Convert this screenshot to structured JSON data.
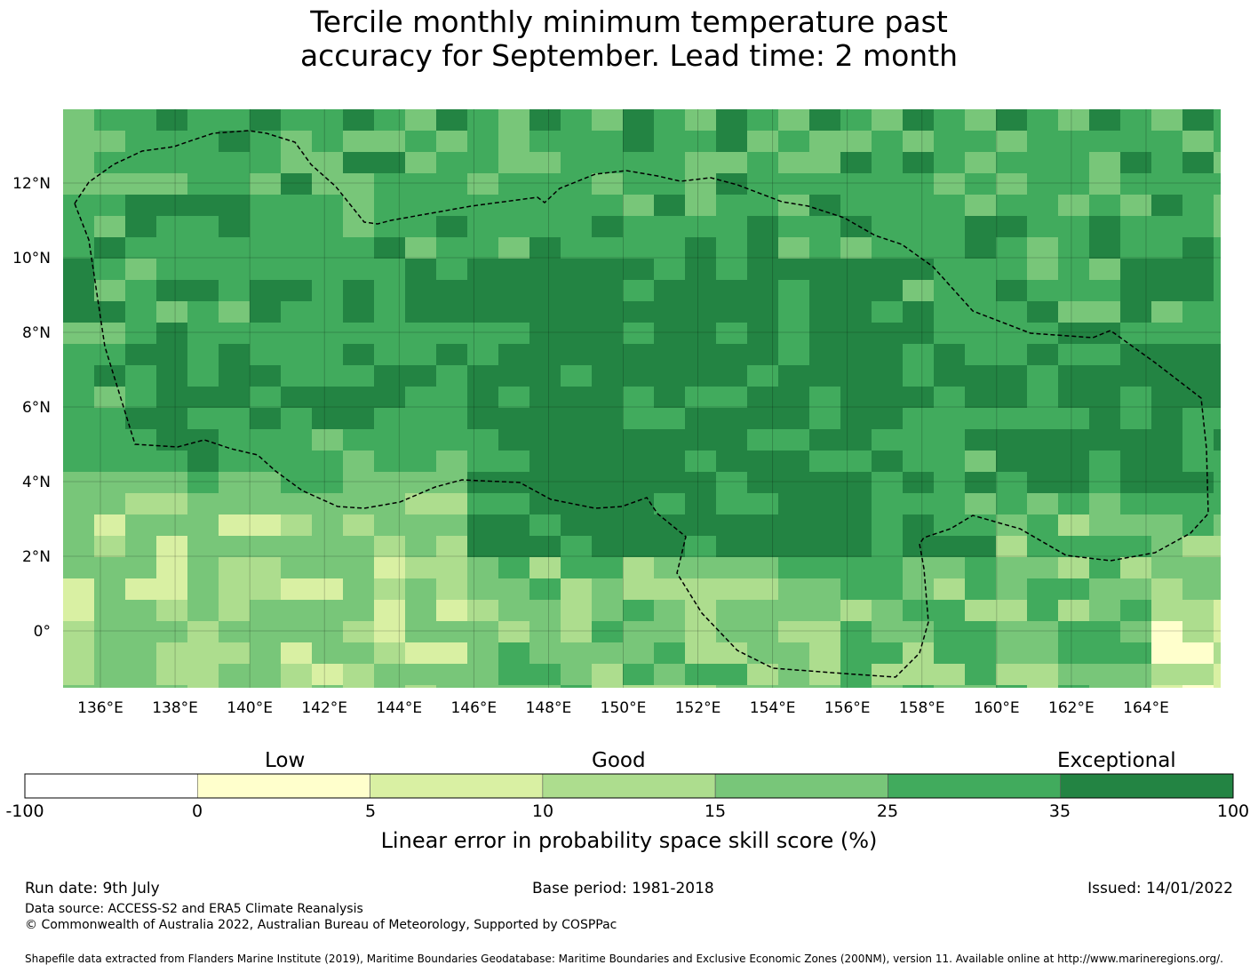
{
  "title": {
    "line1": "Tercile monthly minimum temperature past",
    "line2": "accuracy for September. Lead time: 2 month"
  },
  "map": {
    "lon_labels": [
      "136°E",
      "138°E",
      "140°E",
      "142°E",
      "144°E",
      "146°E",
      "148°E",
      "150°E",
      "152°E",
      "154°E",
      "156°E",
      "158°E",
      "160°E",
      "162°E",
      "164°E"
    ],
    "lat_labels": [
      "12°N",
      "10°N",
      "8°N",
      "6°N",
      "4°N",
      "2°N",
      "0°"
    ],
    "extent": {
      "lon_min": 134,
      "lon_max": 165.8,
      "lat_min": -1.5,
      "lat_max": 14
    }
  },
  "colorbar": {
    "category_low": "Low",
    "category_good": "Good",
    "category_exceptional": "Exceptional",
    "ticks": [
      "-100",
      "0",
      "5",
      "10",
      "15",
      "25",
      "35",
      "100"
    ],
    "colors": [
      "#ffffff",
      "#ffffcc",
      "#d9f0a3",
      "#addd8e",
      "#78c679",
      "#41ab5d",
      "#238443"
    ],
    "title": "Linear error in probability space skill score (%)"
  },
  "footer": {
    "run_date": "Run date: 9th July",
    "base_period": "Base period: 1981-2018",
    "issued": "Issued: 14/01/2022",
    "data_source": "Data source: ACCESS-S2 and ERA5 Climate Reanalysis",
    "copyright": "© Commonwealth of Australia 2022, Australian Bureau of Meteorology, Supported by COSPPac",
    "shapefile": "Shapefile data extracted from Flanders Marine Institute (2019), Maritime Boundaries Geodatabase: Maritime Boundaries and Exclusive Economic Zones (200NM), version 11. Available online at http://www.marineregions.org/."
  }
}
